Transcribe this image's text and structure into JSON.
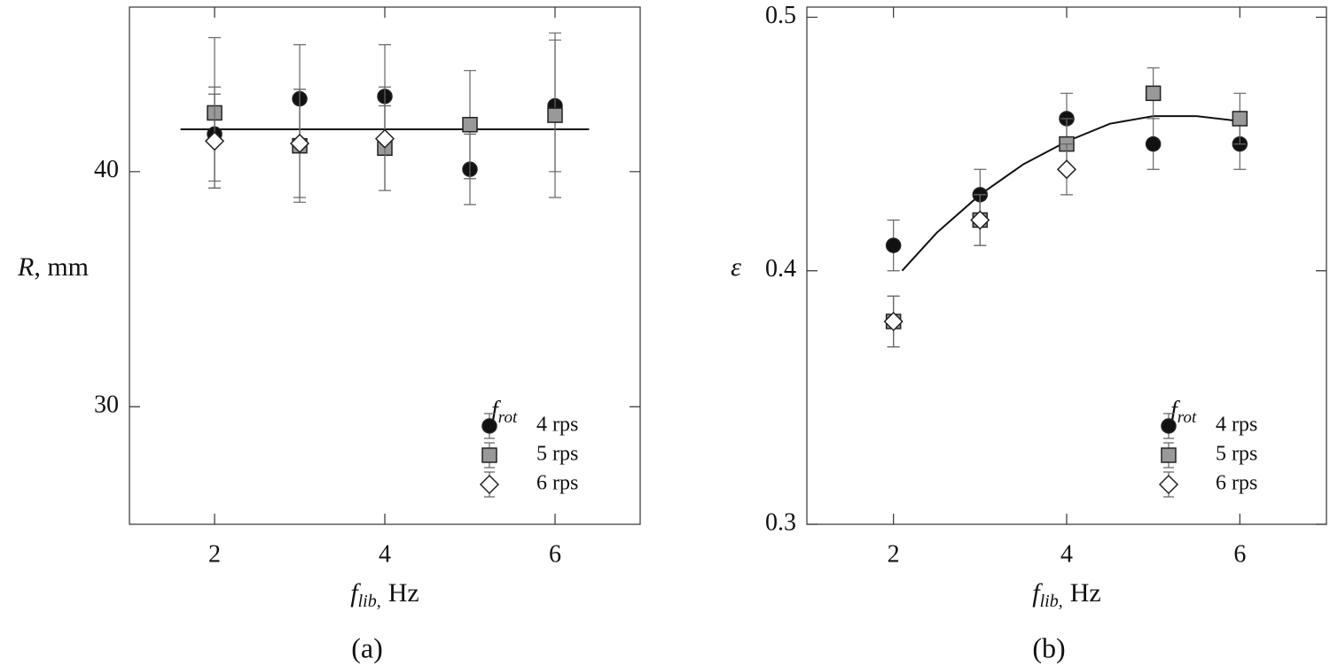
{
  "chart_data": [
    {
      "type": "scatter",
      "panel_label": "(a)",
      "ylabel": {
        "symbol": "R",
        "unit": ", mm"
      },
      "xlabel": {
        "symbol": "f",
        "subscript": "lib,",
        "unit": "Hz"
      },
      "xlim": [
        1,
        7
      ],
      "xticks": [
        2,
        4,
        6
      ],
      "ylim": [
        25,
        47
      ],
      "yticks": [
        30,
        40
      ],
      "legend_title": {
        "symbol": "f",
        "subscript": "rot"
      },
      "x": [
        2,
        3,
        4,
        5,
        6
      ],
      "series": [
        {
          "name": "4 rps",
          "color": "#111111",
          "marker": "circle",
          "values": [
            41.6,
            43.1,
            43.2,
            40.1,
            42.8
          ],
          "errors": [
            2.0,
            2.3,
            2.2,
            1.5,
            2.8
          ]
        },
        {
          "name": "5 rps",
          "color": "#999999",
          "marker": "square",
          "values": [
            42.5,
            41.1,
            41.0,
            42.0,
            42.4
          ],
          "errors": [
            3.2,
            2.4,
            1.8,
            2.3,
            3.5
          ]
        },
        {
          "name": "6 rps",
          "color": "#ffffff",
          "marker": "diamond",
          "values": [
            41.3,
            41.2,
            41.4,
            null,
            null
          ],
          "errors": [
            2.0,
            2.3,
            2.2,
            null,
            null
          ]
        }
      ],
      "fit": {
        "x": [
          1.6,
          6.4
        ],
        "values": [
          41.8,
          41.8
        ]
      }
    },
    {
      "type": "scatter",
      "panel_label": "(b)",
      "ylabel": {
        "symbol": "ε"
      },
      "xlabel": {
        "symbol": "f",
        "subscript": "lib,",
        "unit": "Hz"
      },
      "xlim": [
        1,
        7
      ],
      "xticks": [
        2,
        4,
        6
      ],
      "ylim": [
        0.3,
        0.504
      ],
      "yticks": [
        0.3,
        0.4,
        0.5
      ],
      "legend_title": {
        "symbol": "f",
        "subscript": "rot"
      },
      "x": [
        2,
        3,
        4,
        5,
        6
      ],
      "series": [
        {
          "name": "4 rps",
          "color": "#111111",
          "marker": "circle",
          "values": [
            0.41,
            0.43,
            0.46,
            0.45,
            0.45
          ],
          "errors": [
            0.01,
            0.01,
            0.01,
            0.01,
            0.01
          ]
        },
        {
          "name": "5 rps",
          "color": "#999999",
          "marker": "square",
          "values": [
            0.38,
            0.42,
            0.45,
            0.47,
            0.46
          ],
          "errors": [
            0.01,
            0.01,
            0.01,
            0.01,
            0.01
          ]
        },
        {
          "name": "6 rps",
          "color": "#ffffff",
          "marker": "diamond",
          "values": [
            0.38,
            0.42,
            0.44,
            null,
            null
          ],
          "errors": [
            0.01,
            0.01,
            0.01,
            null,
            null
          ]
        }
      ],
      "fit": {
        "x": [
          2.1,
          2.5,
          3,
          3.5,
          4,
          4.5,
          5,
          5.5,
          6
        ],
        "values": [
          0.4,
          0.415,
          0.43,
          0.442,
          0.451,
          0.458,
          0.461,
          0.461,
          0.459
        ]
      }
    }
  ]
}
